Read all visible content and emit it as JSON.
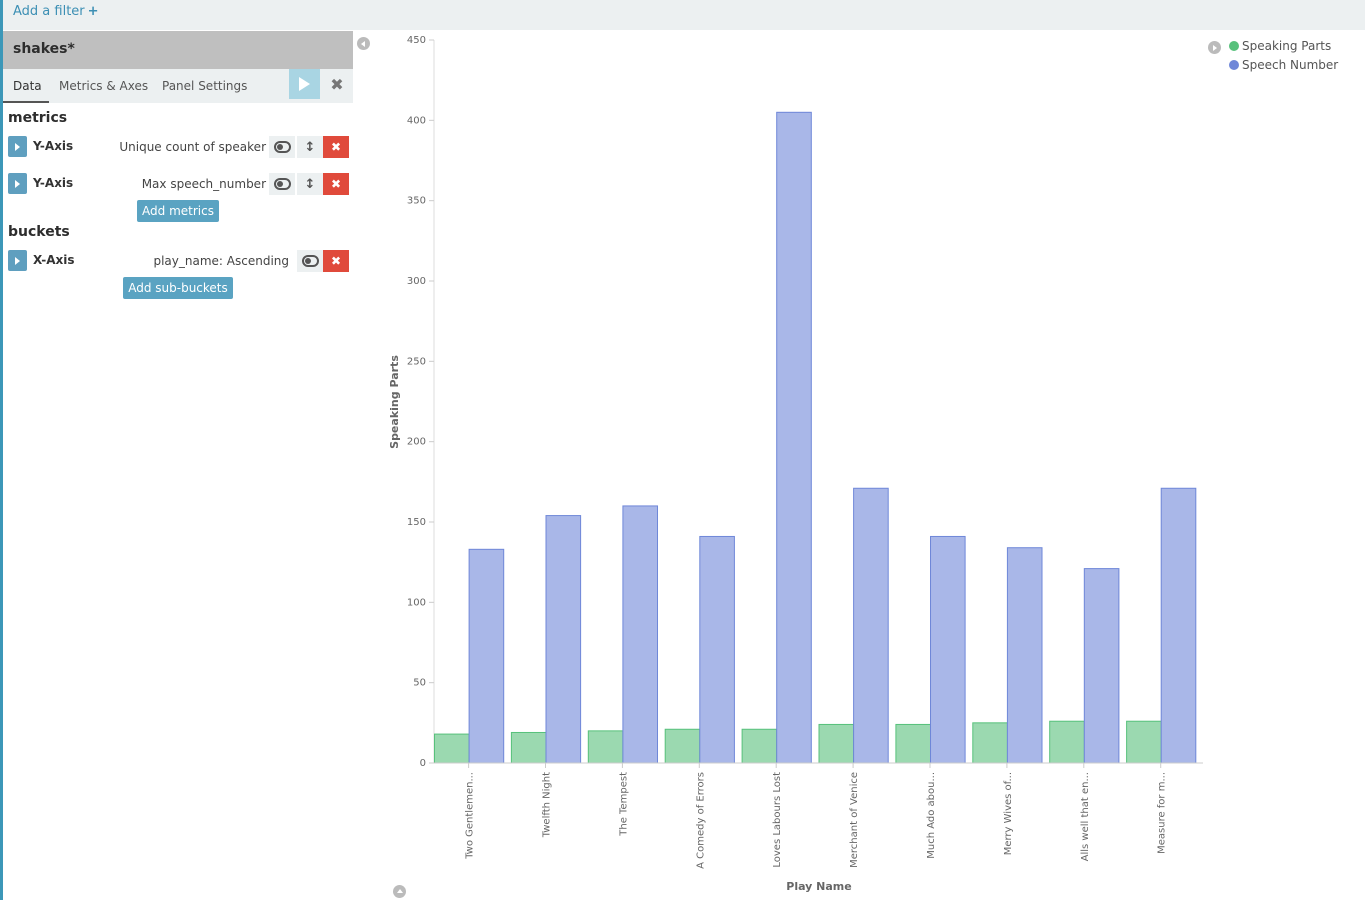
{
  "filter_bar": {
    "add_filter_label": "Add a filter",
    "add_filter_icon": "+"
  },
  "sidebar": {
    "index_title": "shakes*",
    "tabs": [
      {
        "label": "Data"
      },
      {
        "label": "Metrics & Axes"
      },
      {
        "label": "Panel Settings"
      }
    ],
    "metrics_title": "metrics",
    "metrics": [
      {
        "type": "Y-Axis",
        "description": "Unique count of speaker"
      },
      {
        "type": "Y-Axis",
        "description": "Max speech_number"
      }
    ],
    "add_metrics_label": "Add metrics",
    "buckets_title": "buckets",
    "buckets": [
      {
        "type": "X-Axis",
        "description": "play_name: Ascending"
      }
    ],
    "add_buckets_label": "Add sub-buckets"
  },
  "colors": {
    "speaking_parts": "#57c17b",
    "speech_number": "#6f87d8",
    "accent": "#5aa3c2",
    "danger": "#e04a3b"
  },
  "chart_data": {
    "type": "bar",
    "ylabel": "Speaking Parts",
    "xlabel": "Play Name",
    "ylim": [
      0,
      450
    ],
    "yticks": [
      0,
      50,
      100,
      150,
      200,
      250,
      300,
      350,
      400,
      450
    ],
    "grid": false,
    "legend_position": "top-right",
    "categories": [
      "Two Gentlemen...",
      "Twelfth Night",
      "The Tempest",
      "A Comedy of Errors",
      "Loves Labours Lost",
      "Merchant of Venice",
      "Much Ado abou...",
      "Merry Wives of...",
      "Alls well that en...",
      "Measure for m..."
    ],
    "series": [
      {
        "name": "Speaking Parts",
        "values": [
          18,
          19,
          20,
          21,
          21,
          24,
          24,
          25,
          26,
          26
        ]
      },
      {
        "name": "Speech Number",
        "values": [
          133,
          154,
          160,
          141,
          405,
          171,
          141,
          134,
          121,
          171
        ]
      }
    ]
  }
}
